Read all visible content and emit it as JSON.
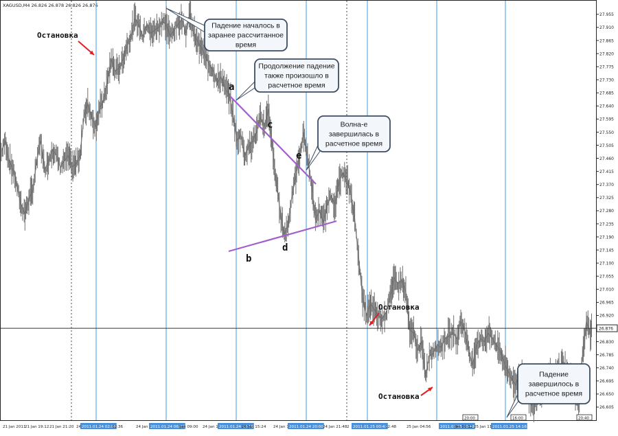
{
  "header": {
    "text": "XAGUSD,M4  26.826 26.878 26.826 26.876"
  },
  "chart_data": {
    "type": "candlestick",
    "symbol": "XAGUSD",
    "timeframe": "M4",
    "ohlc": {
      "open": 26.826,
      "high": 26.878,
      "low": 26.826,
      "close": 26.876
    },
    "current_price_label": "26.876",
    "ylim": [
      26.56,
      27.99
    ],
    "y_ticks": [
      "27.955",
      "27.910",
      "27.865",
      "27.820",
      "27.775",
      "27.730",
      "27.685",
      "27.640",
      "27.595",
      "27.550",
      "27.505",
      "27.460",
      "27.415",
      "27.370",
      "27.325",
      "27.280",
      "27.235",
      "27.190",
      "27.145",
      "27.100",
      "27.055",
      "27.010",
      "26.965",
      "26.920",
      "26.875",
      "26.830",
      "26.785",
      "26.740",
      "26.695",
      "26.650",
      "26.605"
    ],
    "x_ticks": [
      "21 Jan 2011",
      "21 Jan 19:12",
      "21 Jan 21:20",
      "24",
      "2011.01.24 02:08",
      "02:36",
      "24 Jan 04:44",
      "2011.01.24 06:32",
      "Jan 09:00",
      "24 Jan 11:08",
      "2011.01.24 14:16",
      "24 Jan 15:24",
      "24 Jan 17:",
      "2011.01.24 20:00",
      "24 Jan 21:48",
      "2",
      "2011.01.25 00:48",
      "02:48",
      "25 Jan 04:56",
      "2011.01.25 06:48",
      "Jan 09:12",
      "25 Jan 11:20",
      "2011.01.25 14:16",
      "20:00",
      "16:00",
      "20:40"
    ],
    "price_path": [
      [
        0,
        27.48
      ],
      [
        5,
        27.52
      ],
      [
        10,
        27.45
      ],
      [
        15,
        27.42
      ],
      [
        20,
        27.36
      ],
      [
        25,
        27.3
      ],
      [
        30,
        27.27
      ],
      [
        35,
        27.32
      ],
      [
        40,
        27.35
      ],
      [
        45,
        27.45
      ],
      [
        50,
        27.52
      ],
      [
        55,
        27.42
      ],
      [
        60,
        27.45
      ],
      [
        65,
        27.49
      ],
      [
        70,
        27.47
      ],
      [
        75,
        27.43
      ],
      [
        80,
        27.45
      ],
      [
        85,
        27.47
      ],
      [
        90,
        27.43
      ],
      [
        95,
        27.44
      ],
      [
        100,
        27.47
      ],
      [
        105,
        27.6
      ],
      [
        110,
        27.65
      ],
      [
        115,
        27.6
      ],
      [
        120,
        27.57
      ],
      [
        125,
        27.63
      ],
      [
        130,
        27.66
      ],
      [
        135,
        27.72
      ],
      [
        140,
        27.8
      ],
      [
        145,
        27.76
      ],
      [
        150,
        27.77
      ],
      [
        155,
        27.8
      ],
      [
        160,
        27.85
      ],
      [
        165,
        27.88
      ],
      [
        170,
        27.94
      ],
      [
        175,
        27.92
      ],
      [
        180,
        27.88
      ],
      [
        185,
        27.92
      ],
      [
        190,
        27.89
      ],
      [
        195,
        27.9
      ],
      [
        200,
        27.91
      ],
      [
        205,
        27.93
      ],
      [
        210,
        27.92
      ],
      [
        215,
        27.88
      ],
      [
        220,
        27.9
      ],
      [
        225,
        27.92
      ],
      [
        230,
        27.94
      ],
      [
        235,
        27.89
      ],
      [
        240,
        27.96
      ],
      [
        245,
        27.89
      ],
      [
        250,
        27.86
      ],
      [
        255,
        27.84
      ],
      [
        260,
        27.81
      ],
      [
        265,
        27.78
      ],
      [
        270,
        27.76
      ],
      [
        275,
        27.72
      ],
      [
        280,
        27.74
      ],
      [
        285,
        27.7
      ],
      [
        290,
        27.68
      ],
      [
        295,
        27.61
      ],
      [
        300,
        27.52
      ],
      [
        305,
        27.54
      ],
      [
        310,
        27.47
      ],
      [
        315,
        27.5
      ],
      [
        320,
        27.52
      ],
      [
        325,
        27.55
      ],
      [
        330,
        27.6
      ],
      [
        335,
        27.57
      ],
      [
        340,
        27.63
      ],
      [
        345,
        27.5
      ],
      [
        350,
        27.38
      ],
      [
        355,
        27.28
      ],
      [
        360,
        27.2
      ],
      [
        365,
        27.23
      ],
      [
        370,
        27.33
      ],
      [
        375,
        27.4
      ],
      [
        380,
        27.47
      ],
      [
        385,
        27.55
      ],
      [
        390,
        27.46
      ],
      [
        395,
        27.37
      ],
      [
        400,
        27.25
      ],
      [
        405,
        27.28
      ],
      [
        410,
        27.24
      ],
      [
        415,
        27.3
      ],
      [
        420,
        27.33
      ],
      [
        425,
        27.3
      ],
      [
        430,
        27.38
      ],
      [
        435,
        27.41
      ],
      [
        440,
        27.38
      ],
      [
        445,
        27.34
      ],
      [
        450,
        27.25
      ],
      [
        455,
        27.12
      ],
      [
        460,
        26.98
      ],
      [
        465,
        26.92
      ],
      [
        470,
        26.96
      ],
      [
        475,
        26.94
      ],
      [
        480,
        26.92
      ],
      [
        485,
        26.91
      ],
      [
        490,
        26.93
      ],
      [
        495,
        26.98
      ],
      [
        500,
        27.05
      ],
      [
        505,
        27.03
      ],
      [
        510,
        27.04
      ],
      [
        515,
        27.0
      ],
      [
        520,
        26.87
      ],
      [
        525,
        26.86
      ],
      [
        530,
        26.8
      ],
      [
        535,
        26.83
      ],
      [
        540,
        26.71
      ],
      [
        545,
        26.78
      ],
      [
        550,
        26.79
      ],
      [
        555,
        26.82
      ],
      [
        560,
        26.81
      ],
      [
        565,
        26.84
      ],
      [
        570,
        26.85
      ],
      [
        575,
        26.86
      ],
      [
        580,
        26.84
      ],
      [
        585,
        26.9
      ],
      [
        590,
        26.87
      ],
      [
        595,
        26.8
      ],
      [
        600,
        26.75
      ],
      [
        605,
        26.82
      ],
      [
        610,
        26.84
      ],
      [
        615,
        26.83
      ],
      [
        620,
        26.86
      ],
      [
        625,
        26.84
      ],
      [
        630,
        26.82
      ],
      [
        635,
        26.8
      ],
      [
        640,
        26.76
      ],
      [
        645,
        26.73
      ],
      [
        650,
        26.7
      ],
      [
        655,
        26.68
      ],
      [
        660,
        26.73
      ],
      [
        665,
        26.7
      ],
      [
        670,
        26.65
      ],
      [
        675,
        26.61
      ],
      [
        680,
        26.63
      ],
      [
        685,
        26.65
      ],
      [
        690,
        26.68
      ],
      [
        695,
        26.7
      ],
      [
        700,
        26.71
      ],
      [
        705,
        26.7
      ],
      [
        710,
        26.74
      ],
      [
        715,
        26.76
      ],
      [
        720,
        26.73
      ],
      [
        725,
        26.7
      ],
      [
        730,
        26.65
      ],
      [
        735,
        26.62
      ],
      [
        740,
        26.78
      ],
      [
        745,
        26.9
      ],
      [
        750,
        26.86
      ],
      [
        752,
        26.876
      ]
    ],
    "labels": {
      "stop_1": "Остановка",
      "stop_2": "Остановка",
      "stop_3": "Остановка",
      "wave_a": "a",
      "wave_b": "b",
      "wave_c": "c",
      "wave_d": "d",
      "wave_e": "e"
    },
    "callouts": {
      "fall_started": [
        "Падение началось в",
        "заранее рассчитанное",
        "время"
      ],
      "fall_continued": [
        "Продолжение падение",
        "также произошло в",
        "расчетное время"
      ],
      "wave_e_done": [
        "Волна-e",
        "завершилась в",
        "расчетное время"
      ],
      "fall_done": [
        "Падение",
        "завершилось в",
        "расчетное время"
      ]
    },
    "grid": false,
    "colors": {
      "price": "#7a7a7a",
      "time_lines": "#3d9be9",
      "trendline": "#a35fc9",
      "stop_arrow": "#e02020",
      "callout_fill": "#f3f6fb",
      "callout_stroke": "#3c4c64",
      "tag_fill": "#4a90d9"
    }
  }
}
